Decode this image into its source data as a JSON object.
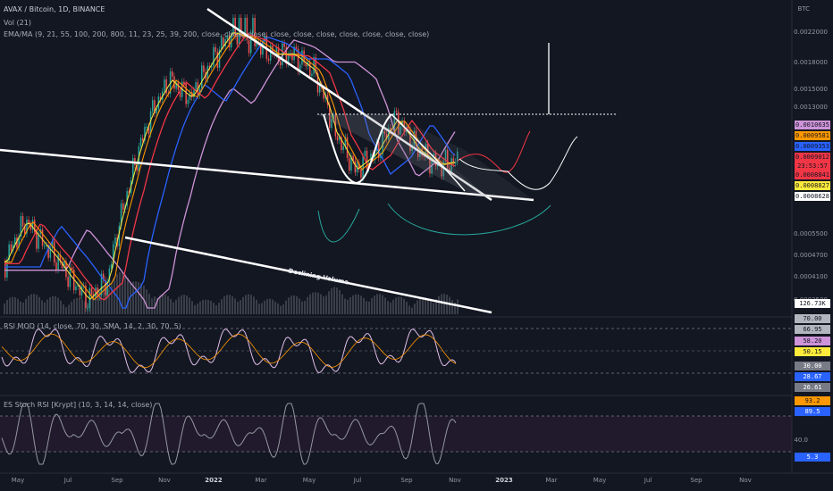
{
  "header": {
    "title": "AVAX / Bitcoin, 1D, BINANCE",
    "volume": "Vol (21)",
    "ema": "EMA/MA (9, 21, 55, 100, 200, 800, 11, 23, 25, 39, 200, close, close, close, close, close, close, close, close, close, close)"
  },
  "price_axis": {
    "unit": "BTC",
    "ticks": [
      "0.0022000",
      "0.0018000",
      "0.0015000",
      "0.0013000",
      "0.0005500",
      "0.0004700",
      "0.0004100",
      "0.0003500"
    ]
  },
  "price_badges": [
    {
      "label": "0.0010635",
      "color": "#ce93d8"
    },
    {
      "label": "0.0009581",
      "color": "#ff9800"
    },
    {
      "label": "0.0009353",
      "color": "#2962ff"
    },
    {
      "label": "0.0009012",
      "color": "#f23645"
    },
    {
      "label": "23:53:57",
      "color": "#f23645"
    },
    {
      "label": "0.0008841",
      "color": "#f23645"
    },
    {
      "label": "0.0008827",
      "color": "#ffeb3b"
    },
    {
      "label": "0.0008628",
      "color": "#ffffff"
    },
    {
      "label": "126.73K",
      "color": "#ffffff"
    }
  ],
  "rsi_pane": {
    "label": "RSI MOD (14, close, 70, 30, SMA, 14, 2, 30, 70, 5)",
    "ticks": [
      "70.00",
      "66.95",
      "58.20",
      "50.15",
      "30.00",
      "28.67",
      "26.61"
    ],
    "badge_colors": [
      "#b2b5be",
      "#b2b5be",
      "#ce93d8",
      "#ffeb3b",
      "#787b86",
      "#2962ff",
      "#787b86"
    ]
  },
  "stoch_pane": {
    "label": "ES Stoch RSI [Krypt] (10, 3, 14, 14, close)",
    "ticks": [
      "93.2",
      "89.5",
      "40.0",
      "5.3"
    ],
    "badge_colors": [
      "#ff9800",
      "#2962ff",
      "",
      "#2962ff"
    ]
  },
  "time_axis": [
    {
      "label": "May",
      "year": false
    },
    {
      "label": "Jul",
      "year": false
    },
    {
      "label": "Sep",
      "year": false
    },
    {
      "label": "Nov",
      "year": false
    },
    {
      "label": "2022",
      "year": true
    },
    {
      "label": "Mar",
      "year": false
    },
    {
      "label": "May",
      "year": false
    },
    {
      "label": "Jul",
      "year": false
    },
    {
      "label": "Sep",
      "year": false
    },
    {
      "label": "Nov",
      "year": false
    },
    {
      "label": "2023",
      "year": true
    },
    {
      "label": "Mar",
      "year": false
    },
    {
      "label": "May",
      "year": false
    },
    {
      "label": "Jul",
      "year": false
    },
    {
      "label": "Sep",
      "year": false
    },
    {
      "label": "Nov",
      "year": false
    }
  ],
  "annotation": "Declining Volume",
  "chart_data": {
    "type": "line",
    "symbol": "AVAX / Bitcoin",
    "interval": "1D",
    "exchange": "BINANCE",
    "xlabel": "",
    "ylabel": "BTC",
    "grid": false,
    "last_price": 0.0009012,
    "series": [
      {
        "values": [
          0.00045,
          0.0006,
          0.0005,
          0.00042,
          0.00035,
          0.0004,
          0.00075,
          0.0012,
          0.0016,
          0.0014,
          0.0018,
          0.0022,
          0.0021,
          0.0019,
          0.0019,
          0.0017,
          0.0011,
          0.00085,
          0.00095,
          0.0012,
          0.00098,
          0.00088,
          0.0009
        ]
      },
      {
        "name": "EMA 55",
        "values": [
          0.0004,
          0.00052,
          0.0005,
          0.00045,
          0.0004,
          0.00045,
          0.0007,
          0.001,
          0.0013,
          0.0014,
          0.0016,
          0.0019,
          0.002,
          0.0019,
          0.0018,
          0.0017,
          0.0013,
          0.001,
          0.00098,
          0.0011,
          0.001,
          0.00093,
          0.00094
        ]
      }
    ]
  }
}
